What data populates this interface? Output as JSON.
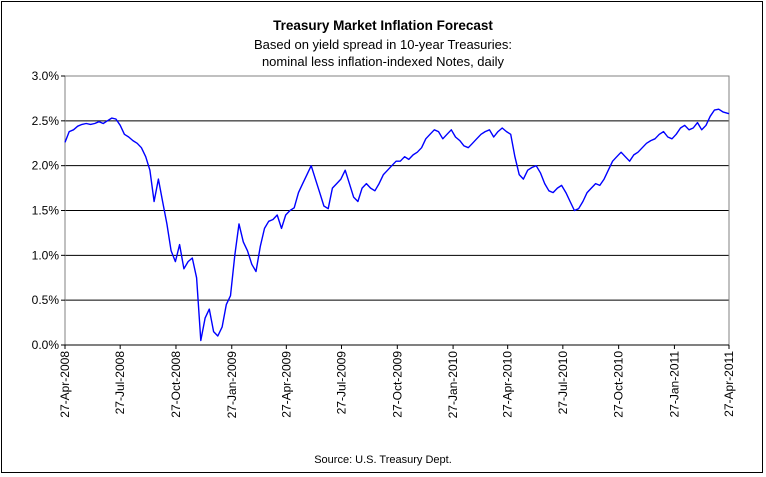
{
  "chart_data": {
    "type": "line",
    "title": "Treasury Market Inflation Forecast",
    "subtitle_lines": [
      "Based on yield spread in 10-year Treasuries:",
      "nominal less inflation-indexed Notes, daily"
    ],
    "source": "Source: U.S. Treasury Dept.",
    "xlabel": "",
    "ylabel": "",
    "x_ticks": [
      "27-Apr-2008",
      "27-Jul-2008",
      "27-Oct-2008",
      "27-Jan-2009",
      "27-Apr-2009",
      "27-Jul-2009",
      "27-Oct-2009",
      "27-Jan-2010",
      "27-Apr-2010",
      "27-Jul-2010",
      "27-Oct-2010",
      "27-Jan-2011",
      "27-Apr-2011"
    ],
    "y_ticks": [
      "0.0%",
      "0.5%",
      "1.0%",
      "1.5%",
      "2.0%",
      "2.5%",
      "3.0%"
    ],
    "ylim": [
      0,
      3.0
    ],
    "xlim": [
      "2008-04-27",
      "2011-04-27"
    ],
    "grid": "horizontal",
    "color": "#0000ff",
    "series": [
      {
        "points": [
          [
            "2008-04-27",
            2.26
          ],
          [
            "2008-05-04",
            2.38
          ],
          [
            "2008-05-11",
            2.4
          ],
          [
            "2008-05-18",
            2.44
          ],
          [
            "2008-05-25",
            2.46
          ],
          [
            "2008-06-01",
            2.47
          ],
          [
            "2008-06-08",
            2.46
          ],
          [
            "2008-06-15",
            2.47
          ],
          [
            "2008-06-22",
            2.49
          ],
          [
            "2008-06-29",
            2.47
          ],
          [
            "2008-07-06",
            2.5
          ],
          [
            "2008-07-13",
            2.53
          ],
          [
            "2008-07-20",
            2.52
          ],
          [
            "2008-07-27",
            2.45
          ],
          [
            "2008-08-03",
            2.35
          ],
          [
            "2008-08-10",
            2.32
          ],
          [
            "2008-08-17",
            2.28
          ],
          [
            "2008-08-24",
            2.25
          ],
          [
            "2008-08-31",
            2.2
          ],
          [
            "2008-09-07",
            2.1
          ],
          [
            "2008-09-14",
            1.95
          ],
          [
            "2008-09-21",
            1.6
          ],
          [
            "2008-09-28",
            1.85
          ],
          [
            "2008-10-05",
            1.6
          ],
          [
            "2008-10-12",
            1.35
          ],
          [
            "2008-10-19",
            1.05
          ],
          [
            "2008-10-26",
            0.93
          ],
          [
            "2008-11-02",
            1.12
          ],
          [
            "2008-11-09",
            0.85
          ],
          [
            "2008-11-16",
            0.93
          ],
          [
            "2008-11-23",
            0.97
          ],
          [
            "2008-11-30",
            0.75
          ],
          [
            "2008-12-07",
            0.05
          ],
          [
            "2008-12-14",
            0.3
          ],
          [
            "2008-12-21",
            0.4
          ],
          [
            "2008-12-28",
            0.15
          ],
          [
            "2009-01-04",
            0.1
          ],
          [
            "2009-01-11",
            0.2
          ],
          [
            "2009-01-18",
            0.45
          ],
          [
            "2009-01-25",
            0.55
          ],
          [
            "2009-02-01",
            1.0
          ],
          [
            "2009-02-08",
            1.35
          ],
          [
            "2009-02-15",
            1.15
          ],
          [
            "2009-02-22",
            1.05
          ],
          [
            "2009-03-01",
            0.9
          ],
          [
            "2009-03-08",
            0.82
          ],
          [
            "2009-03-15",
            1.1
          ],
          [
            "2009-03-22",
            1.3
          ],
          [
            "2009-03-29",
            1.38
          ],
          [
            "2009-04-05",
            1.4
          ],
          [
            "2009-04-12",
            1.45
          ],
          [
            "2009-04-19",
            1.3
          ],
          [
            "2009-04-26",
            1.45
          ],
          [
            "2009-05-03",
            1.5
          ],
          [
            "2009-05-10",
            1.53
          ],
          [
            "2009-05-17",
            1.7
          ],
          [
            "2009-05-24",
            1.8
          ],
          [
            "2009-05-31",
            1.9
          ],
          [
            "2009-06-07",
            2.0
          ],
          [
            "2009-06-14",
            1.85
          ],
          [
            "2009-06-21",
            1.7
          ],
          [
            "2009-06-28",
            1.55
          ],
          [
            "2009-07-05",
            1.52
          ],
          [
            "2009-07-12",
            1.75
          ],
          [
            "2009-07-19",
            1.8
          ],
          [
            "2009-07-26",
            1.85
          ],
          [
            "2009-08-02",
            1.95
          ],
          [
            "2009-08-09",
            1.8
          ],
          [
            "2009-08-16",
            1.65
          ],
          [
            "2009-08-23",
            1.6
          ],
          [
            "2009-08-30",
            1.75
          ],
          [
            "2009-09-06",
            1.8
          ],
          [
            "2009-09-13",
            1.75
          ],
          [
            "2009-09-20",
            1.72
          ],
          [
            "2009-09-27",
            1.8
          ],
          [
            "2009-10-04",
            1.9
          ],
          [
            "2009-10-11",
            1.95
          ],
          [
            "2009-10-18",
            2.0
          ],
          [
            "2009-10-25",
            2.05
          ],
          [
            "2009-11-01",
            2.05
          ],
          [
            "2009-11-08",
            2.1
          ],
          [
            "2009-11-15",
            2.07
          ],
          [
            "2009-11-22",
            2.12
          ],
          [
            "2009-11-29",
            2.15
          ],
          [
            "2009-12-06",
            2.2
          ],
          [
            "2009-12-13",
            2.3
          ],
          [
            "2009-12-20",
            2.35
          ],
          [
            "2009-12-27",
            2.4
          ],
          [
            "2010-01-03",
            2.38
          ],
          [
            "2010-01-10",
            2.3
          ],
          [
            "2010-01-17",
            2.35
          ],
          [
            "2010-01-24",
            2.4
          ],
          [
            "2010-01-31",
            2.32
          ],
          [
            "2010-02-07",
            2.28
          ],
          [
            "2010-02-14",
            2.22
          ],
          [
            "2010-02-21",
            2.2
          ],
          [
            "2010-02-28",
            2.25
          ],
          [
            "2010-03-07",
            2.3
          ],
          [
            "2010-03-14",
            2.35
          ],
          [
            "2010-03-21",
            2.38
          ],
          [
            "2010-03-28",
            2.4
          ],
          [
            "2010-04-04",
            2.32
          ],
          [
            "2010-04-11",
            2.38
          ],
          [
            "2010-04-18",
            2.42
          ],
          [
            "2010-04-25",
            2.38
          ],
          [
            "2010-05-02",
            2.35
          ],
          [
            "2010-05-09",
            2.1
          ],
          [
            "2010-05-16",
            1.9
          ],
          [
            "2010-05-23",
            1.85
          ],
          [
            "2010-05-30",
            1.95
          ],
          [
            "2010-06-06",
            1.98
          ],
          [
            "2010-06-13",
            2.0
          ],
          [
            "2010-06-20",
            1.92
          ],
          [
            "2010-06-27",
            1.8
          ],
          [
            "2010-07-04",
            1.72
          ],
          [
            "2010-07-11",
            1.7
          ],
          [
            "2010-07-18",
            1.75
          ],
          [
            "2010-07-25",
            1.78
          ],
          [
            "2010-08-01",
            1.7
          ],
          [
            "2010-08-08",
            1.6
          ],
          [
            "2010-08-15",
            1.5
          ],
          [
            "2010-08-22",
            1.52
          ],
          [
            "2010-08-29",
            1.6
          ],
          [
            "2010-09-05",
            1.7
          ],
          [
            "2010-09-12",
            1.75
          ],
          [
            "2010-09-19",
            1.8
          ],
          [
            "2010-09-26",
            1.78
          ],
          [
            "2010-10-03",
            1.85
          ],
          [
            "2010-10-10",
            1.95
          ],
          [
            "2010-10-17",
            2.05
          ],
          [
            "2010-10-24",
            2.1
          ],
          [
            "2010-10-31",
            2.15
          ],
          [
            "2010-11-07",
            2.1
          ],
          [
            "2010-11-14",
            2.05
          ],
          [
            "2010-11-21",
            2.12
          ],
          [
            "2010-11-28",
            2.15
          ],
          [
            "2010-12-05",
            2.2
          ],
          [
            "2010-12-12",
            2.25
          ],
          [
            "2010-12-19",
            2.28
          ],
          [
            "2010-12-26",
            2.3
          ],
          [
            "2011-01-02",
            2.35
          ],
          [
            "2011-01-09",
            2.38
          ],
          [
            "2011-01-16",
            2.32
          ],
          [
            "2011-01-23",
            2.3
          ],
          [
            "2011-01-30",
            2.35
          ],
          [
            "2011-02-06",
            2.42
          ],
          [
            "2011-02-13",
            2.45
          ],
          [
            "2011-02-20",
            2.4
          ],
          [
            "2011-02-27",
            2.42
          ],
          [
            "2011-03-06",
            2.48
          ],
          [
            "2011-03-13",
            2.4
          ],
          [
            "2011-03-20",
            2.45
          ],
          [
            "2011-03-27",
            2.55
          ],
          [
            "2011-04-03",
            2.62
          ],
          [
            "2011-04-10",
            2.63
          ],
          [
            "2011-04-17",
            2.6
          ],
          [
            "2011-04-27",
            2.58
          ]
        ]
      }
    ]
  }
}
